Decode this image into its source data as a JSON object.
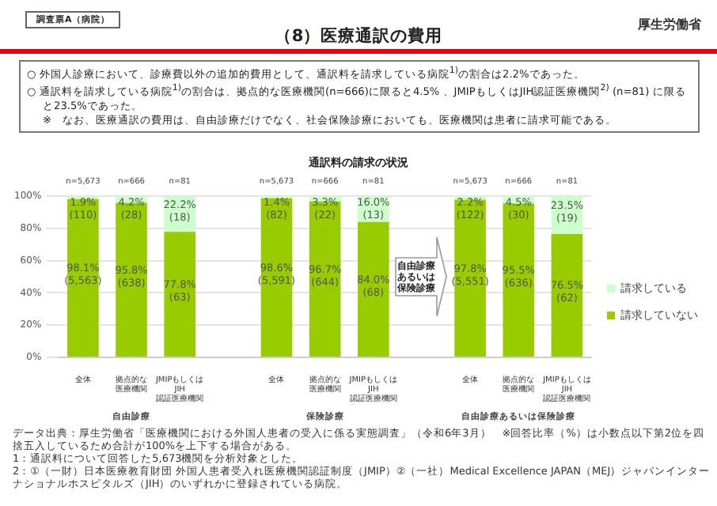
{
  "chart_data": {
    "type": "bar",
    "stacked": true,
    "title": "（8）医療通訳の費用",
    "subtitle": "通訳料の請求の状況",
    "categories": [
      "全体",
      "拠点的な医療機関",
      "JMIPもしくはJIH認証医療機関",
      null,
      "全体",
      "拠点的な医療機関",
      "JMIPもしくはJIH認証医療機関",
      null,
      "全体",
      "拠点的な医療機関",
      "JMIPもしくはJIH認証医療機関"
    ],
    "series": [
      {
        "name": "請求していない",
        "color": "#99cc00",
        "values": [
          98.1,
          95.8,
          77.8,
          null,
          98.6,
          96.7,
          84.0,
          null,
          97.8,
          95.5,
          76.5
        ],
        "value_labels": [
          "98.1%\n(5,563)",
          "95.8%\n(638)",
          "77.8%\n(63)",
          null,
          "98.6%\n(5,591)",
          "96.7%\n(644)",
          "84.0%\n(68)",
          null,
          "97.8%\n(5,551)",
          "95.5%\n(636)",
          "76.5%\n(62)"
        ]
      },
      {
        "name": "請求している",
        "color": "#ccffcc",
        "values": [
          1.9,
          4.2,
          22.2,
          null,
          1.4,
          3.3,
          16.0,
          null,
          2.2,
          4.5,
          23.5
        ],
        "value_labels": [
          "1.9%\n(110)",
          "4.2%\n(28)",
          "22.2%\n(18)",
          null,
          "1.4%\n(82)",
          "3.3%\n(22)",
          "16.0%\n(13)",
          null,
          "2.2%\n(122)",
          "4.5%\n(30)",
          "23.5%\n(19)"
        ]
      }
    ],
    "ylim": [
      0,
      100
    ],
    "yticks": [
      {
        "value": 0,
        "label": "0%"
      },
      {
        "value": 20,
        "label": "20%"
      },
      {
        "value": 40,
        "label": "40%"
      },
      {
        "value": 60,
        "label": "60%"
      },
      {
        "value": 80,
        "label": "80%"
      },
      {
        "value": 100,
        "label": "100%"
      }
    ],
    "grid": "y",
    "legend": "right",
    "annotations": [
      "調査票A（病院）",
      "厚生労働省",
      "○ 外国人診療において、診療費以外の追加的費用として、通訳料を請求している病院$^{1)}$の割合は2.2%であった。",
      "○ 通訳料を請求している病院$^{1)}$の割合は、拠点的な医療機関(n=666)に限ると4.5% 、JMIPもしくはJIH認証医療機関$^{2)}$ (n=81) に限ると23.5%であった。",
      "※　なお、医療通訳の費用は、自由診療だけでなく、社会保険診療においても、医療機関は患者に請求可能である。",
      "自由診療あるいは保険診療",
      "自由診療",
      "保険診療",
      "自由診療あるいは保険診療",
      "n=5,673",
      "n=666",
      "n=81",
      "n=5,673",
      "n=666",
      "n=81",
      "n=5,673",
      "n=666",
      "n=81",
      "データ出典：厚生労働省「医療機関における外国人患者の受入に係る実態調査」（令和6年3月）　※回答比率（%）は小数点以下第2位を四捨五入しているため合計が100%を上下する場合がある。",
      "1：通訳料について回答した5,673機関を分析対象とした。",
      "2：①（一財）日本医療教育財団 外国人患者受入れ医療機関認証制度（JMIP）②（一社）Medical Excellence JAPAN（MEJ）ジャパンインターナショナルホスピタルズ（JIH）のいずれかに登録されている病院。"
    ]
  }
}
